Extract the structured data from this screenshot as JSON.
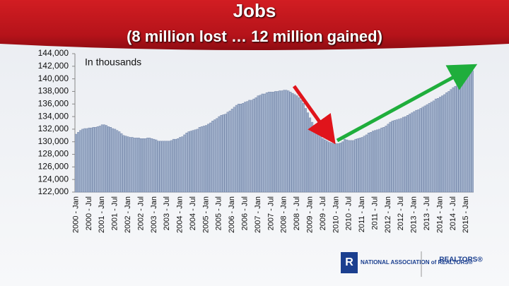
{
  "chart_data": {
    "type": "bar",
    "title": "Jobs",
    "subtitle": "(8 million lost … 12 million gained)",
    "annotation": "In thousands",
    "logo_text": [
      "NATIONAL ASSOCIATION of REALTORS®",
      "REALTORS®"
    ],
    "color": "#a3b3cd",
    "edge_color": "#6f82a6",
    "ylim": [
      122000,
      144000
    ],
    "yticks": [
      {
        "value": 122000,
        "label": "122,000"
      },
      {
        "value": 124000,
        "label": "124,000"
      },
      {
        "value": 126000,
        "label": "126,000"
      },
      {
        "value": 128000,
        "label": "128,000"
      },
      {
        "value": 130000,
        "label": "130,000"
      },
      {
        "value": 132000,
        "label": "132,000"
      },
      {
        "value": 134000,
        "label": "134,000"
      },
      {
        "value": 136000,
        "label": "136,000"
      },
      {
        "value": 138000,
        "label": "138,000"
      },
      {
        "value": 140000,
        "label": "140,000"
      },
      {
        "value": 142000,
        "label": "142,000"
      },
      {
        "value": 144000,
        "label": "144,000"
      }
    ],
    "categories": [
      "2000 - Jan",
      null,
      null,
      null,
      null,
      null,
      "2000 - Jul",
      null,
      null,
      null,
      null,
      null,
      "2001 - Jan",
      null,
      null,
      null,
      null,
      null,
      "2001 - Jul",
      null,
      null,
      null,
      null,
      null,
      "2002 - Jan",
      null,
      null,
      null,
      null,
      null,
      "2002 - Jul",
      null,
      null,
      null,
      null,
      null,
      "2003 - Jan",
      null,
      null,
      null,
      null,
      null,
      "2003 - Jul",
      null,
      null,
      null,
      null,
      null,
      "2004 - Jan",
      null,
      null,
      null,
      null,
      null,
      "2004 - Jul",
      null,
      null,
      null,
      null,
      null,
      "2005 - Jan",
      null,
      null,
      null,
      null,
      null,
      "2005 - Jul",
      null,
      null,
      null,
      null,
      null,
      "2006 - Jan",
      null,
      null,
      null,
      null,
      null,
      "2006 - Jul",
      null,
      null,
      null,
      null,
      null,
      "2007 - Jan",
      null,
      null,
      null,
      null,
      null,
      "2007 - Jul",
      null,
      null,
      null,
      null,
      null,
      "2008 - Jan",
      null,
      null,
      null,
      null,
      null,
      "2008 - Jul",
      null,
      null,
      null,
      null,
      null,
      "2009 - Jan",
      null,
      null,
      null,
      null,
      null,
      "2009 - Jul",
      null,
      null,
      null,
      null,
      null,
      "2010 - Jan",
      null,
      null,
      null,
      null,
      null,
      "2010 - Jul",
      null,
      null,
      null,
      null,
      null,
      "2011 - Jan",
      null,
      null,
      null,
      null,
      null,
      "2011 - Jul",
      null,
      null,
      null,
      null,
      null,
      "2012 - Jan",
      null,
      null,
      null,
      null,
      null,
      "2012 - Jul",
      null,
      null,
      null,
      null,
      null,
      "2013 - Jan",
      null,
      null,
      null,
      null,
      null,
      "2013 - Jul",
      null,
      null,
      null,
      null,
      null,
      "2014 - Jan",
      null,
      null,
      null,
      null,
      null,
      "2014 - Jul",
      null,
      null,
      null,
      null,
      null,
      "2015 - Jan",
      null,
      null,
      null
    ],
    "values": [
      131200,
      131500,
      131800,
      132000,
      132100,
      132100,
      132200,
      132200,
      132300,
      132300,
      132400,
      132500,
      132700,
      132700,
      132600,
      132400,
      132300,
      132100,
      132000,
      131800,
      131600,
      131300,
      131000,
      130900,
      130800,
      130700,
      130700,
      130600,
      130600,
      130600,
      130500,
      130500,
      130500,
      130600,
      130600,
      130500,
      130400,
      130300,
      130100,
      130100,
      130100,
      130100,
      130100,
      130100,
      130200,
      130400,
      130400,
      130500,
      130700,
      130800,
      131100,
      131400,
      131600,
      131700,
      131800,
      131900,
      132000,
      132300,
      132400,
      132500,
      132600,
      132800,
      133000,
      133300,
      133500,
      133700,
      134000,
      134200,
      134300,
      134400,
      134700,
      134900,
      135200,
      135500,
      135800,
      136000,
      136000,
      136100,
      136300,
      136400,
      136600,
      136600,
      136800,
      137000,
      137300,
      137400,
      137600,
      137600,
      137800,
      137900,
      137900,
      137900,
      138000,
      138000,
      138100,
      138100,
      138200,
      138200,
      138100,
      137900,
      137700,
      137500,
      137300,
      137000,
      136600,
      136100,
      135300,
      134600,
      133800,
      133100,
      132300,
      131600,
      131300,
      130800,
      130500,
      130300,
      130100,
      129900,
      129800,
      129700,
      129700,
      129700,
      129800,
      130000,
      130400,
      130300,
      130200,
      130200,
      130200,
      130400,
      130500,
      130600,
      130700,
      130900,
      131100,
      131400,
      131500,
      131700,
      131800,
      131900,
      132000,
      132200,
      132300,
      132500,
      132800,
      133100,
      133300,
      133400,
      133500,
      133600,
      133700,
      133900,
      134000,
      134200,
      134400,
      134600,
      134800,
      135000,
      135100,
      135300,
      135500,
      135700,
      135900,
      136100,
      136300,
      136500,
      136800,
      136900,
      137100,
      137300,
      137500,
      137800,
      138000,
      138300,
      138600,
      138800,
      139100,
      139400,
      139700,
      140100,
      140400,
      140700,
      141000,
      141300
    ]
  }
}
